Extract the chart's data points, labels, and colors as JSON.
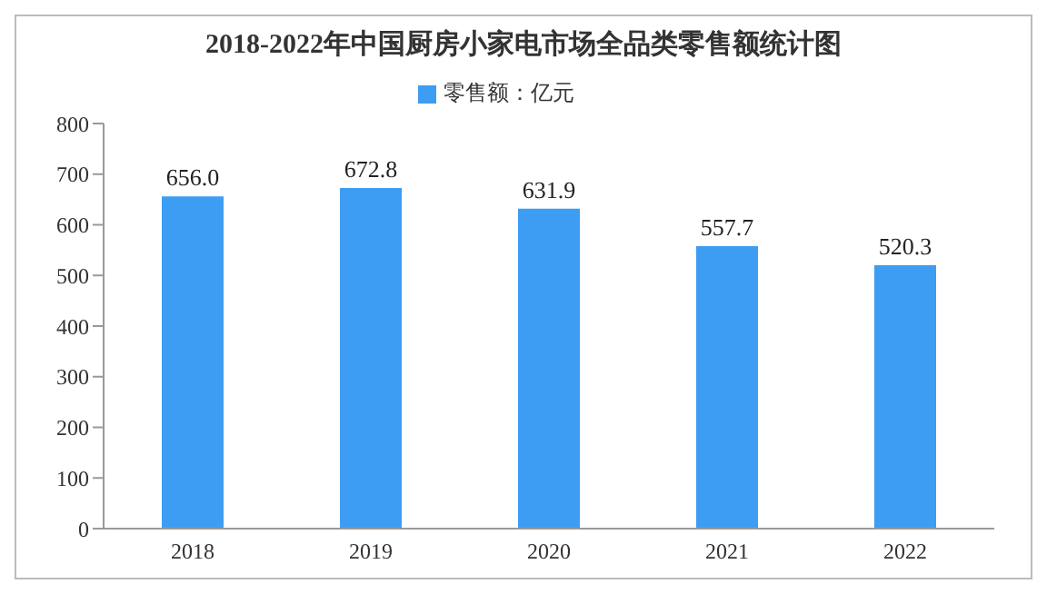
{
  "chart_data": {
    "type": "bar",
    "title": "2018-2022年中国厨房小家电市场全品类零售额统计图",
    "categories": [
      "2018",
      "2019",
      "2020",
      "2021",
      "2022"
    ],
    "series": [
      {
        "name": "零售额：亿元",
        "color": "#3d9df2",
        "values": [
          656.0,
          672.8,
          631.9,
          557.7,
          520.3
        ]
      }
    ],
    "value_labels": [
      "656.0",
      "672.8",
      "631.9",
      "557.7",
      "520.3"
    ],
    "ylim": [
      0,
      800
    ],
    "yticks": [
      0,
      100,
      200,
      300,
      400,
      500,
      600,
      700,
      800
    ],
    "grid": false,
    "legend": "top"
  }
}
